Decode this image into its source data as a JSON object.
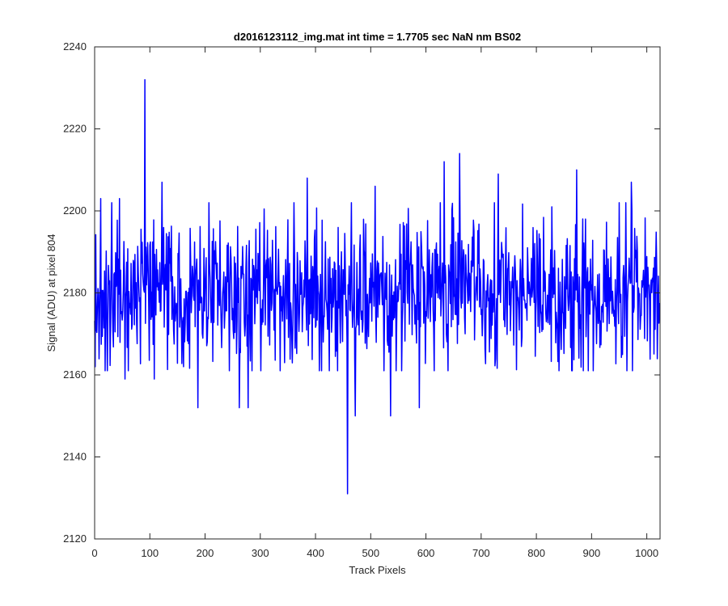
{
  "chart_data": {
    "type": "line",
    "title": "d2016123112_img.mat int time = 1.7705 sec  NaN nm BS02",
    "xlabel": "Track Pixels",
    "ylabel": "Signal (ADU) at pixel 804",
    "xlim": [
      0,
      1024
    ],
    "ylim": [
      2120,
      2240
    ],
    "xticks": [
      0,
      100,
      200,
      300,
      400,
      500,
      600,
      700,
      800,
      900,
      1000
    ],
    "yticks": [
      2120,
      2140,
      2160,
      2180,
      2200,
      2220,
      2240
    ],
    "grid": false,
    "box": true,
    "n_points": 1024,
    "baseline": 2180,
    "noise_sd": 9,
    "seed": 20161231,
    "series": [
      {
        "color": "#0000ff",
        "notable_points": [
          {
            "x": 1,
            "y": 2162
          },
          {
            "x": 11,
            "y": 2203
          },
          {
            "x": 45,
            "y": 2203
          },
          {
            "x": 55,
            "y": 2159
          },
          {
            "x": 91,
            "y": 2232
          },
          {
            "x": 108,
            "y": 2159
          },
          {
            "x": 122,
            "y": 2207
          },
          {
            "x": 187,
            "y": 2152
          },
          {
            "x": 262,
            "y": 2152
          },
          {
            "x": 278,
            "y": 2152
          },
          {
            "x": 385,
            "y": 2208
          },
          {
            "x": 458,
            "y": 2131
          },
          {
            "x": 472,
            "y": 2150
          },
          {
            "x": 508,
            "y": 2206
          },
          {
            "x": 536,
            "y": 2150
          },
          {
            "x": 588,
            "y": 2152
          },
          {
            "x": 633,
            "y": 2212
          },
          {
            "x": 661,
            "y": 2214
          },
          {
            "x": 731,
            "y": 2209
          },
          {
            "x": 873,
            "y": 2210
          },
          {
            "x": 972,
            "y": 2207
          }
        ]
      }
    ]
  }
}
